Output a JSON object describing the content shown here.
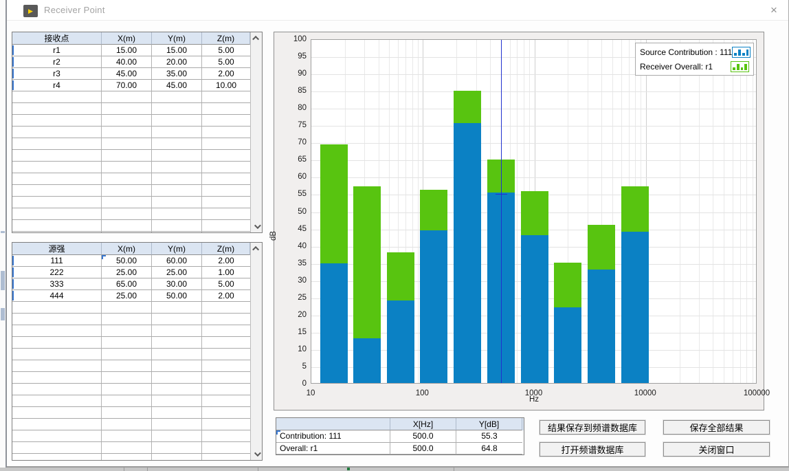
{
  "window": {
    "title": "Receiver Point",
    "close_glyph": "×"
  },
  "receiver_table": {
    "headers": [
      "接收点",
      "X(m)",
      "Y(m)",
      "Z(m)"
    ],
    "rows": [
      [
        "r1",
        "15.00",
        "15.00",
        "5.00"
      ],
      [
        "r2",
        "40.00",
        "20.00",
        "5.00"
      ],
      [
        "r3",
        "45.00",
        "35.00",
        "2.00"
      ],
      [
        "r4",
        "70.00",
        "45.00",
        "10.00"
      ]
    ]
  },
  "source_table": {
    "headers": [
      "源强",
      "X(m)",
      "Y(m)",
      "Z(m)"
    ],
    "rows": [
      [
        "111",
        "50.00",
        "60.00",
        "2.00"
      ],
      [
        "222",
        "25.00",
        "25.00",
        "1.00"
      ],
      [
        "333",
        "65.00",
        "30.00",
        "5.00"
      ],
      [
        "444",
        "25.00",
        "50.00",
        "2.00"
      ]
    ]
  },
  "chart_data": {
    "type": "bar",
    "x_scale": "log",
    "x_range": [
      10,
      100000
    ],
    "ylim": [
      0,
      100
    ],
    "y_step": 5,
    "ylabel": "dB",
    "xlabel": "Hz",
    "x_tick_labels": [
      "10",
      "100",
      "1000",
      "10000",
      "100000"
    ],
    "categories": [
      16,
      31.5,
      63,
      125,
      250,
      500,
      1000,
      2000,
      4000,
      8000
    ],
    "series": [
      {
        "name": "Receiver Overall: r1",
        "color": "#58c410",
        "values": [
          69.3,
          57.0,
          37.9,
          56.1,
          84.9,
          64.8,
          55.7,
          35.0,
          46.0,
          57.0
        ]
      },
      {
        "name": "Source Contribution : 111",
        "color": "#0b81c4",
        "values": [
          34.7,
          12.9,
          24.0,
          44.3,
          75.4,
          55.3,
          43.0,
          22.0,
          33.0,
          44.0
        ]
      }
    ],
    "legend_position": "top-right",
    "grid": true,
    "cursor": {
      "x": 500,
      "color": "#2030cf",
      "y_contribution": 55.3,
      "y_overall": 64.8
    }
  },
  "legend": {
    "items": [
      {
        "label": "Source Contribution : 111",
        "color": "#0b81c4"
      },
      {
        "label": "Receiver Overall: r1",
        "color": "#58c410"
      }
    ]
  },
  "cursor_table": {
    "headers": [
      "",
      "X[Hz]",
      "Y[dB]"
    ],
    "rows": [
      [
        "Contribution: 111",
        "500.0",
        "55.3"
      ],
      [
        "Overall: r1",
        "500.0",
        "64.8"
      ]
    ]
  },
  "buttons": {
    "save_to_db": "结果保存到频谱数据库",
    "save_all": "保存全部结果",
    "open_db": "打开频谱数据库",
    "close_window": "关闭窗口"
  }
}
